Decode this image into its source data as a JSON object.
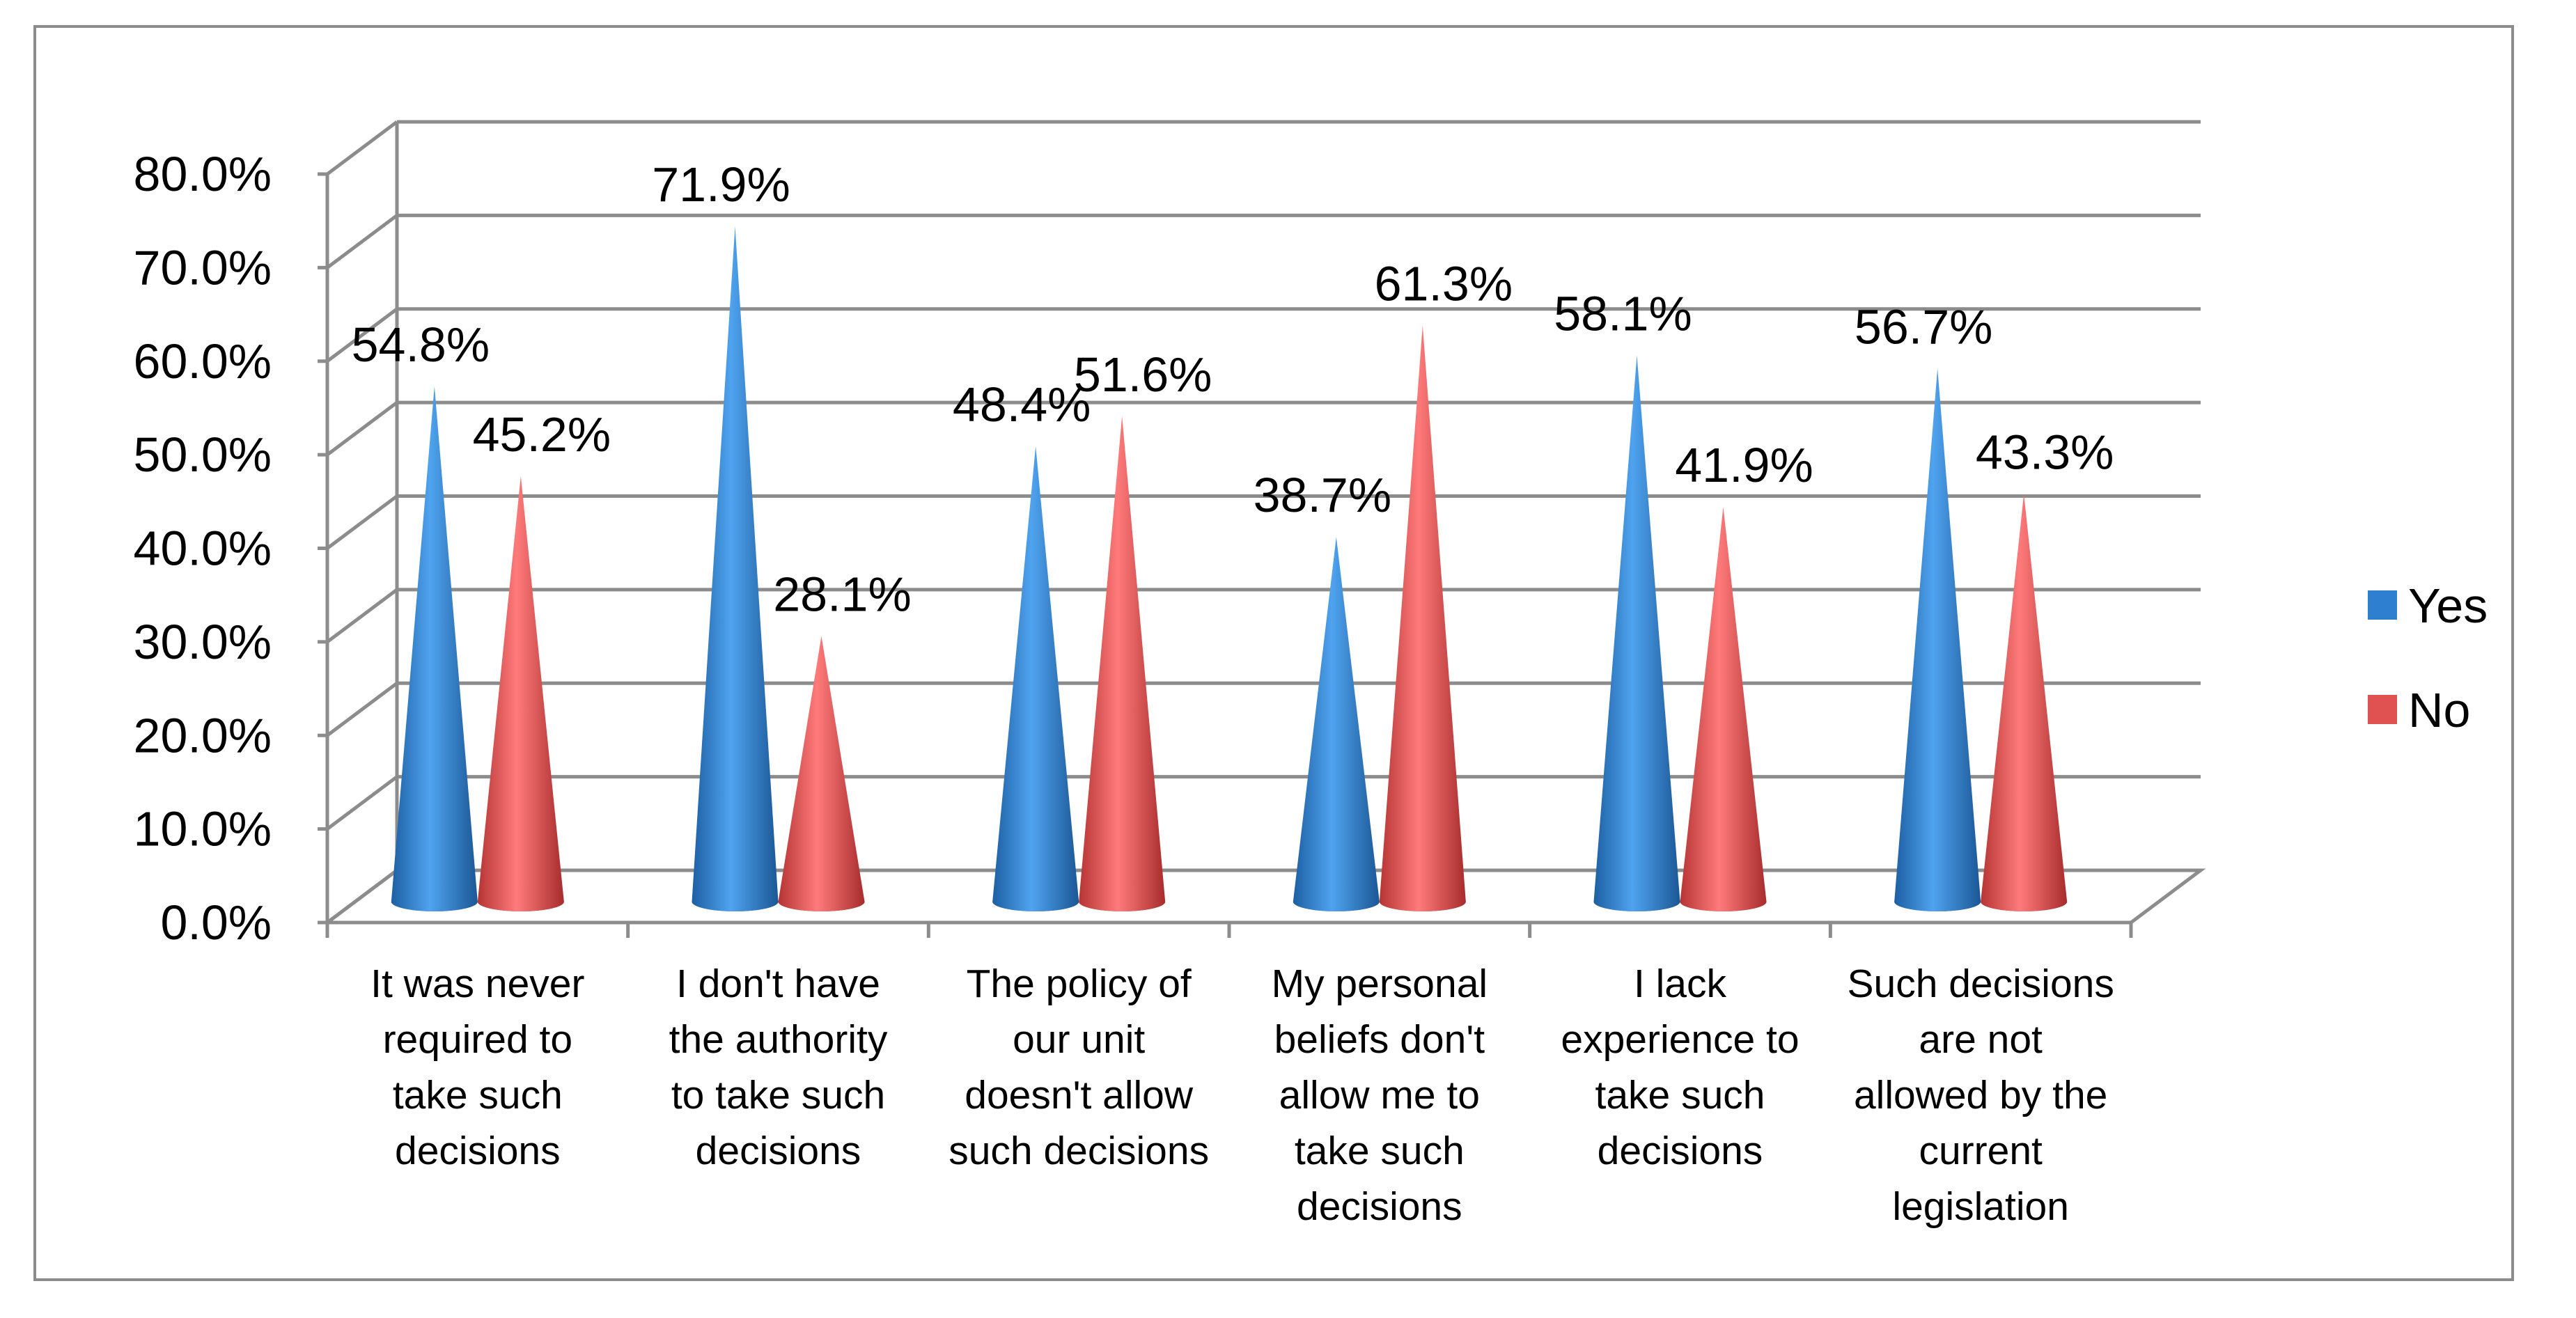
{
  "chart_data": {
    "type": "bar",
    "bar_shape": "cone-3d",
    "title": "",
    "xlabel": "",
    "ylabel": "",
    "ylim": [
      0,
      0.8
    ],
    "y_ticks": [
      0,
      0.1,
      0.2,
      0.3,
      0.4,
      0.5,
      0.6,
      0.7,
      0.8
    ],
    "y_tick_labels": [
      "0.0%",
      "10.0%",
      "20.0%",
      "30.0%",
      "40.0%",
      "50.0%",
      "60.0%",
      "70.0%",
      "80.0%"
    ],
    "grid": true,
    "legend_position": "right",
    "categories": [
      [
        "It was never",
        "required to",
        "take such",
        "decisions"
      ],
      [
        "I don't have",
        "the authority",
        "to take such",
        "decisions"
      ],
      [
        "The policy of",
        "our unit",
        "doesn't allow",
        "such decisions"
      ],
      [
        "My personal",
        "beliefs don't",
        "allow me to",
        "take such",
        "decisions"
      ],
      [
        "I lack",
        "experience to",
        "take such",
        "decisions"
      ],
      [
        "Such decisions",
        "are not",
        "allowed by the",
        "current",
        "legislation"
      ]
    ],
    "series": [
      {
        "name": "Yes",
        "color": "#2e7fd0",
        "values": [
          0.548,
          0.719,
          0.484,
          0.387,
          0.581,
          0.567
        ],
        "labels": [
          "54.8%",
          "71.9%",
          "48.4%",
          "38.7%",
          "58.1%",
          "56.7%"
        ]
      },
      {
        "name": "No",
        "color": "#e05252",
        "values": [
          0.452,
          0.281,
          0.516,
          0.613,
          0.419,
          0.433
        ],
        "labels": [
          "45.2%",
          "28.1%",
          "51.6%",
          "61.3%",
          "41.9%",
          "43.3%"
        ]
      }
    ]
  }
}
